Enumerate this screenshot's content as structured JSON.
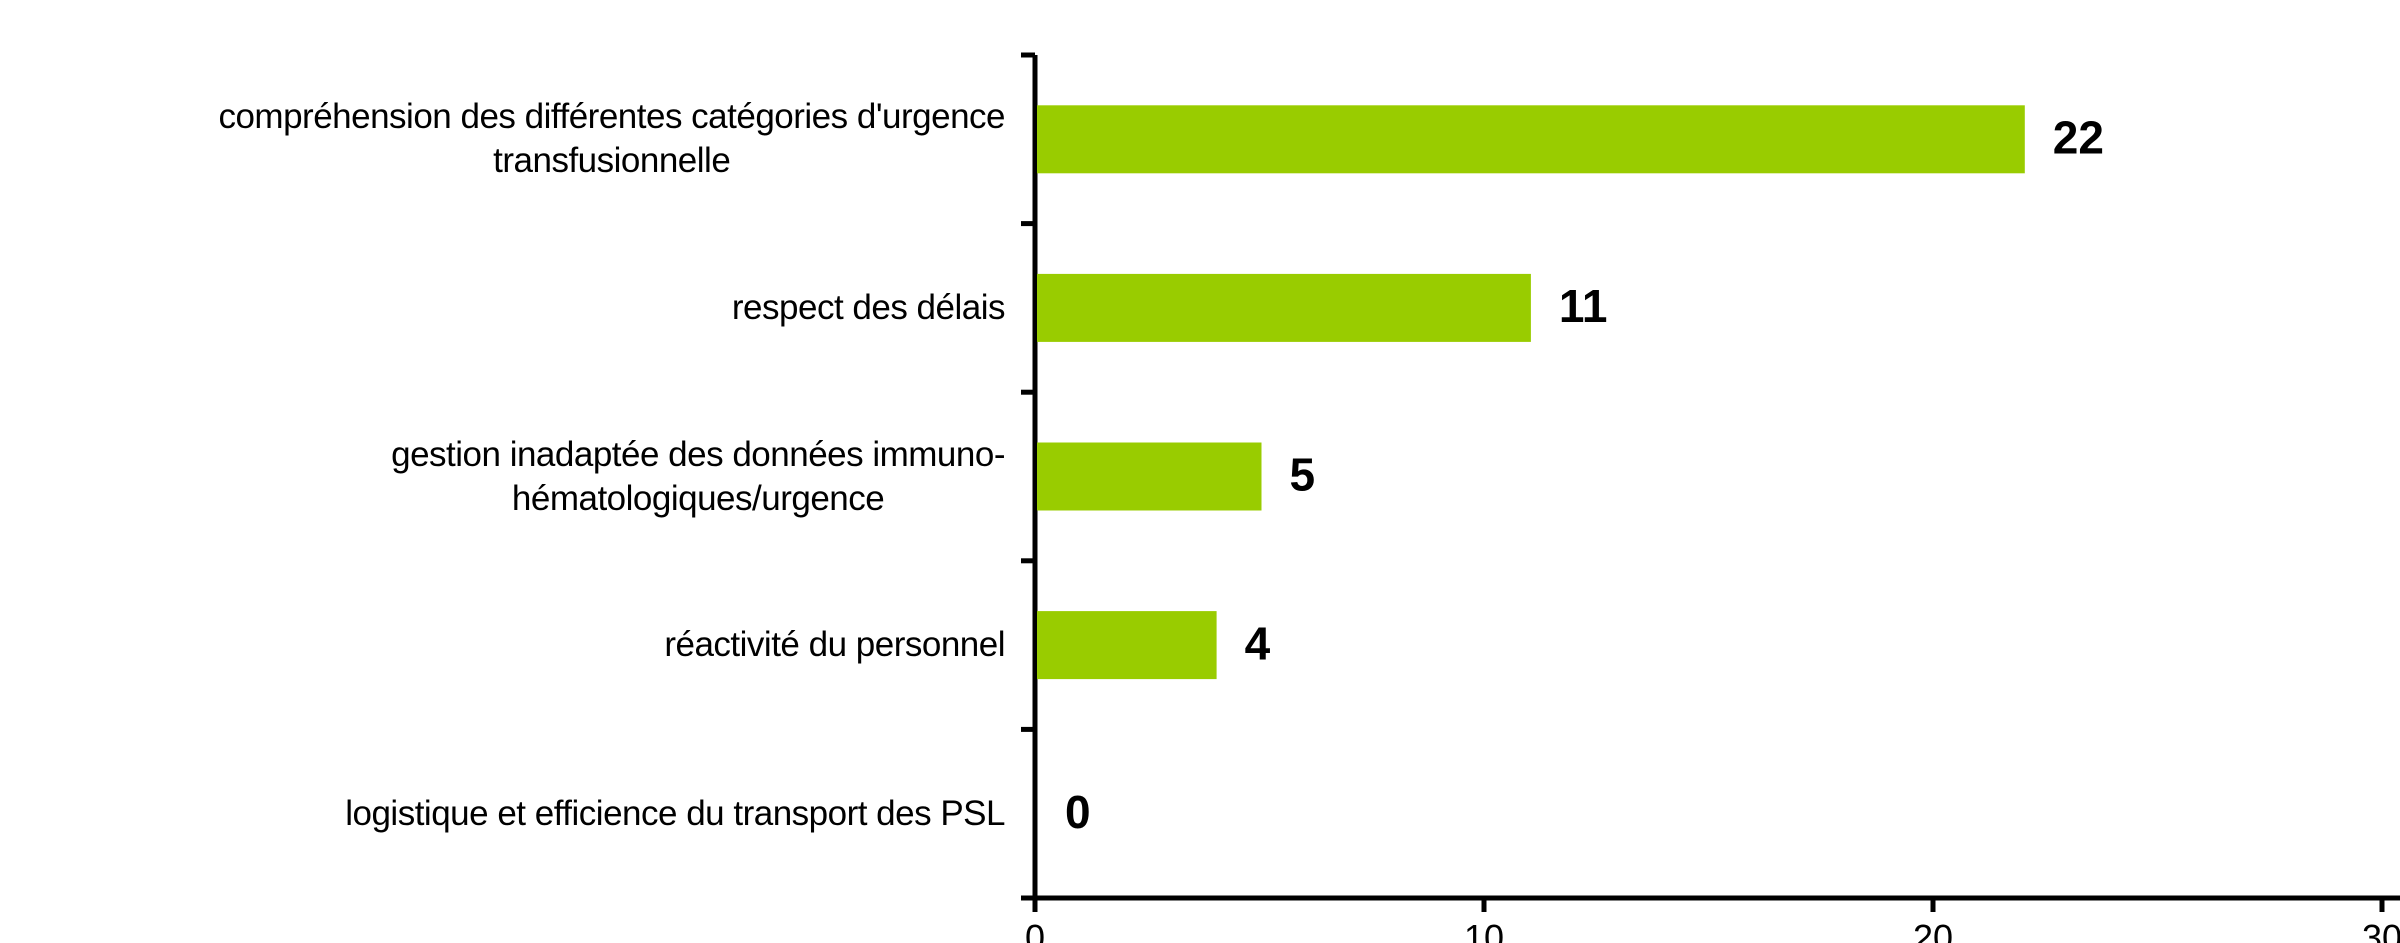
{
  "chart_data": {
    "type": "barh",
    "categories": [
      "compréhension des différentes catégories d'urgence\ntransfusionnelle",
      "respect des délais",
      "gestion inadaptée des données immuno-\nhématologiques/urgence",
      "réactivité du personnel",
      "logistique et efficience du transport des PSL"
    ],
    "values": [
      22,
      11,
      5,
      4,
      0
    ],
    "color": "#99cc00",
    "xlim": [
      0,
      30
    ],
    "xticks": [
      0,
      10,
      20,
      30
    ],
    "grid": false
  }
}
